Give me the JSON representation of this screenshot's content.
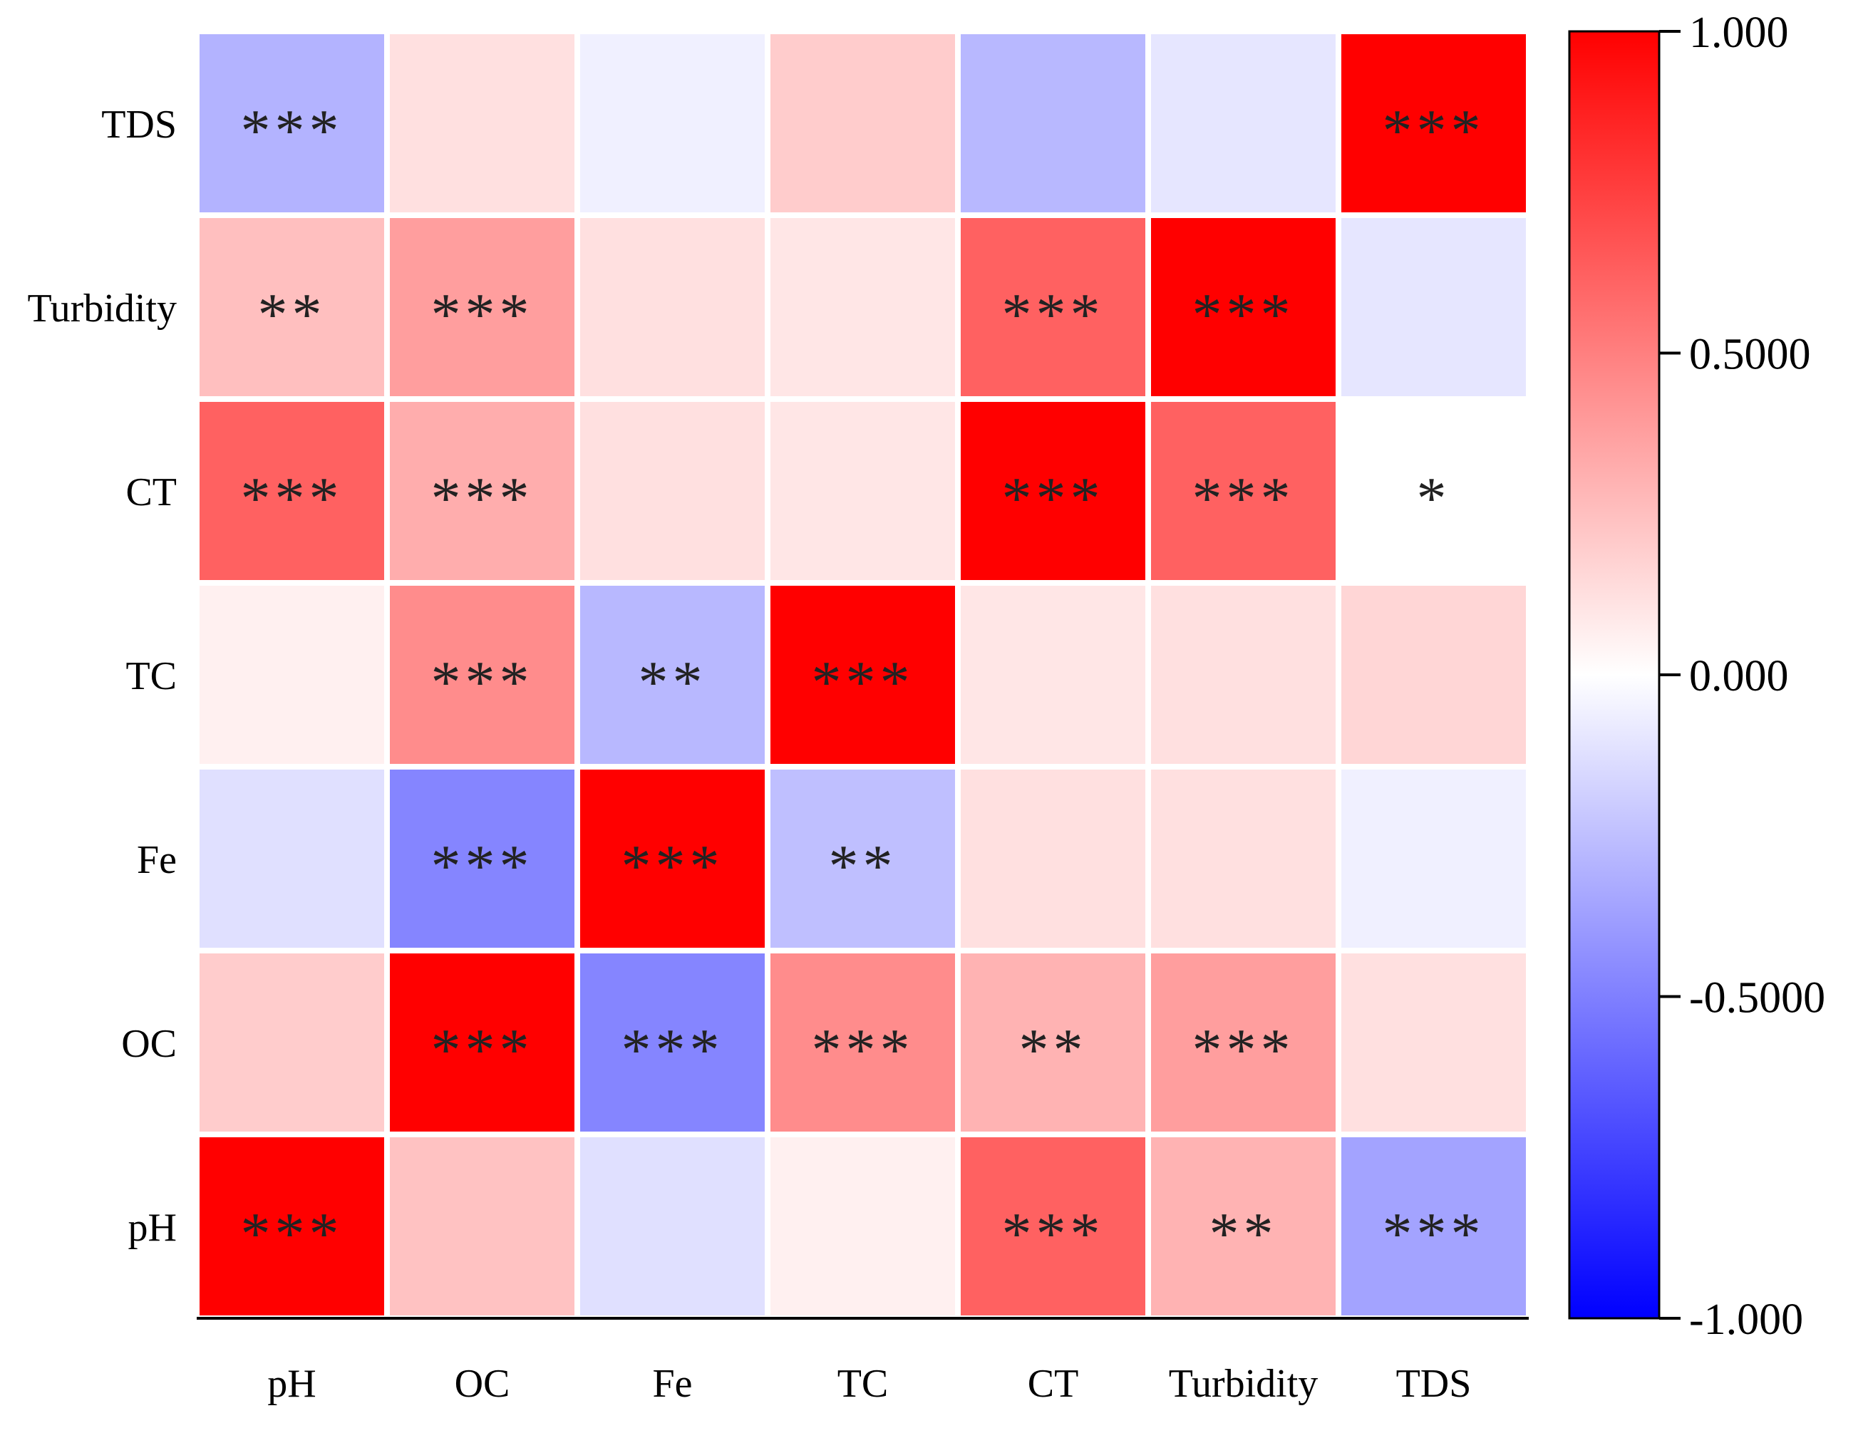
{
  "chart_data": {
    "type": "heatmap",
    "title": "",
    "x_categories": [
      "pH",
      "OC",
      "Fe",
      "TC",
      "CT",
      "Turbidity",
      "TDS"
    ],
    "y_categories": [
      "TDS",
      "Turbidity",
      "CT",
      "TC",
      "Fe",
      "OC",
      "pH"
    ],
    "values": [
      [
        -0.3,
        0.12,
        -0.06,
        0.2,
        -0.28,
        -0.1,
        1.0
      ],
      [
        0.25,
        0.38,
        0.12,
        0.1,
        0.62,
        1.0,
        -0.1
      ],
      [
        0.62,
        0.32,
        0.12,
        0.1,
        1.0,
        0.62,
        0.0
      ],
      [
        0.06,
        0.45,
        -0.28,
        1.0,
        0.1,
        0.12,
        0.16
      ],
      [
        -0.12,
        -0.48,
        1.0,
        -0.25,
        0.12,
        0.12,
        -0.06
      ],
      [
        0.2,
        1.0,
        -0.48,
        0.45,
        0.3,
        0.38,
        0.12
      ],
      [
        1.0,
        0.24,
        -0.12,
        0.06,
        0.62,
        0.3,
        -0.36
      ]
    ],
    "significance": [
      [
        "***",
        "",
        "",
        "",
        "",
        "",
        "***"
      ],
      [
        "**",
        "***",
        "",
        "",
        "***",
        "***",
        ""
      ],
      [
        "***",
        "***",
        "",
        "",
        "***",
        "***",
        "*"
      ],
      [
        "",
        "***",
        "**",
        "***",
        "",
        "",
        ""
      ],
      [
        "",
        "***",
        "***",
        "**",
        "",
        "",
        ""
      ],
      [
        "",
        "***",
        "***",
        "***",
        "**",
        "***",
        ""
      ],
      [
        "***",
        "",
        "",
        "",
        "***",
        "**",
        "***"
      ]
    ],
    "colorbar": {
      "min": -1,
      "max": 1,
      "ticks": [
        {
          "value": 1,
          "label": "1.000"
        },
        {
          "value": 0.5,
          "label": "0.5000"
        },
        {
          "value": 0,
          "label": "0.000"
        },
        {
          "value": -0.5,
          "label": "-0.5000"
        },
        {
          "value": -1,
          "label": "-1.000"
        }
      ],
      "color_low": "#0000ff",
      "color_mid": "#ffffff",
      "color_high": "#ff0000"
    }
  }
}
